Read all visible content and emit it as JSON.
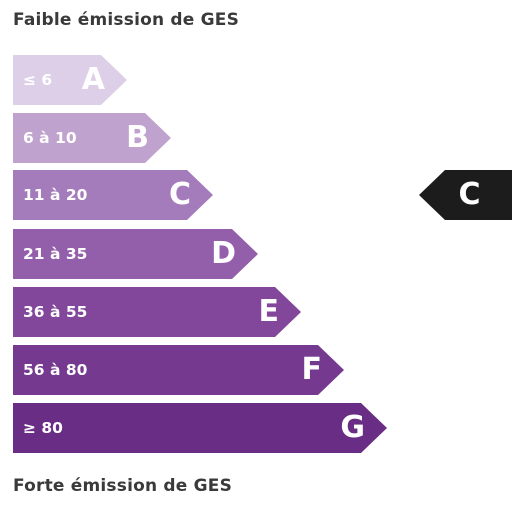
{
  "title_top": "Faible émission de GES",
  "title_bottom": "Forte émission de GES",
  "classes": [
    {
      "range": "≤ 6",
      "letter": "A",
      "color": "#dccfe7"
    },
    {
      "range": "6 à 10",
      "letter": "B",
      "color": "#c0a2cf"
    },
    {
      "range": "11 à 20",
      "letter": "C",
      "color": "#a47bbb"
    },
    {
      "range": "21 à 35",
      "letter": "D",
      "color": "#935fab"
    },
    {
      "range": "36 à 55",
      "letter": "E",
      "color": "#82469a"
    },
    {
      "range": "56 à 80",
      "letter": "F",
      "color": "#75398f"
    },
    {
      "range": "≥ 80",
      "letter": "G",
      "color": "#6a2d85"
    }
  ],
  "current_class": "C",
  "indicator_color": "#1c1c1c"
}
